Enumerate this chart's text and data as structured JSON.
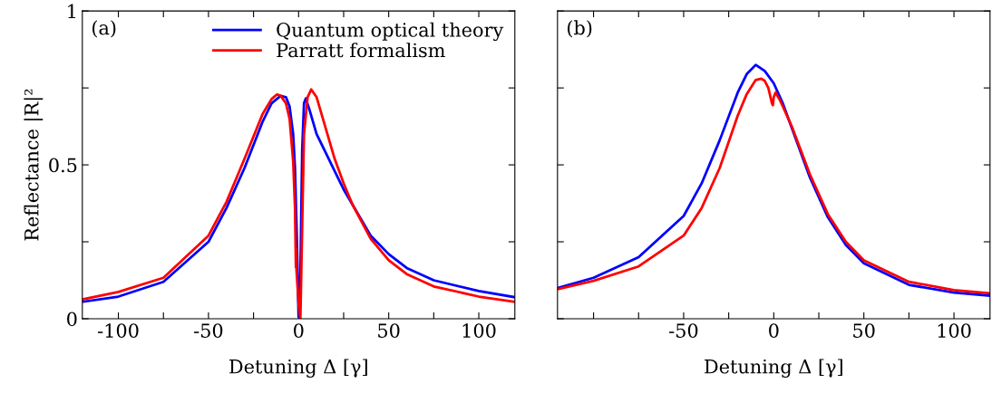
{
  "chart_data": [
    {
      "type": "line",
      "xlabel": "Detuning Δ [γ]",
      "ylabel": "Reflectance |R|²",
      "annotations": [
        "(a)"
      ],
      "legend": "top right",
      "grid": false,
      "xlim": [
        -120,
        120
      ],
      "xticks": [
        -100,
        {
          "value": -75,
          "label": null
        },
        -50,
        {
          "value": -25,
          "label": null
        },
        0,
        {
          "value": 25,
          "label": null
        },
        50,
        {
          "value": 75,
          "label": null
        },
        100
      ],
      "ylim": [
        0,
        1
      ],
      "yticks": [
        0,
        {
          "value": 0.25,
          "label": null
        },
        0.5,
        {
          "value": 0.75,
          "label": null
        },
        1
      ],
      "series": [
        {
          "name": "Quantum optical theory",
          "color": "#0000ff",
          "x": [
            -120,
            -100,
            -75,
            -50,
            -40,
            -30,
            -20,
            -15,
            -10,
            -7,
            -5,
            -3,
            -2,
            -1,
            0,
            1,
            2,
            3,
            4,
            6,
            10,
            15,
            20,
            25,
            30,
            40,
            50,
            60,
            75,
            100,
            120
          ],
          "values": [
            0.055,
            0.072,
            0.12,
            0.25,
            0.36,
            0.49,
            0.64,
            0.7,
            0.724,
            0.72,
            0.69,
            0.6,
            0.49,
            0.27,
            0.005,
            0.15,
            0.55,
            0.7,
            0.716,
            0.68,
            0.6,
            0.54,
            0.48,
            0.42,
            0.37,
            0.27,
            0.21,
            0.165,
            0.125,
            0.09,
            0.07
          ]
        },
        {
          "name": "Parratt formalism",
          "color": "#ff0000",
          "x": [
            -120,
            -100,
            -75,
            -50,
            -40,
            -30,
            -20,
            -15,
            -12,
            -10,
            -7,
            -5,
            -3,
            -2,
            -1.5,
            -1.3,
            -1.2,
            0,
            1,
            2,
            3,
            5,
            7,
            10,
            15,
            20,
            25,
            30,
            40,
            50,
            60,
            75,
            100,
            120
          ],
          "values": [
            0.063,
            0.087,
            0.133,
            0.27,
            0.38,
            0.52,
            0.665,
            0.714,
            0.729,
            0.725,
            0.7,
            0.65,
            0.51,
            0.36,
            0.167,
            0.226,
            0.16,
            0.05,
            0.0,
            0.3,
            0.6,
            0.72,
            0.745,
            0.72,
            0.62,
            0.52,
            0.44,
            0.37,
            0.26,
            0.19,
            0.145,
            0.105,
            0.072,
            0.055
          ]
        }
      ]
    },
    {
      "type": "line",
      "xlabel": "Detuning Δ [γ]",
      "annotations": [
        "(b)"
      ],
      "tick_labels": "x",
      "grid": false,
      "xlim": [
        -120,
        120
      ],
      "xticks": [
        {
          "value": -100,
          "label": null
        },
        {
          "value": -75,
          "label": null
        },
        -50,
        {
          "value": -25,
          "label": null
        },
        0,
        {
          "value": 25,
          "label": null
        },
        50,
        {
          "value": 75,
          "label": null
        },
        100
      ],
      "ylim": [
        0,
        1
      ],
      "yticks": [
        0,
        0.25,
        0.5,
        0.75,
        1
      ],
      "series": [
        {
          "color": "#0000ff",
          "x": [
            -120,
            -100,
            -75,
            -50,
            -40,
            -30,
            -20,
            -15,
            -10,
            -5,
            0,
            5,
            10,
            20,
            30,
            40,
            50,
            75,
            100,
            120
          ],
          "values": [
            0.1,
            0.133,
            0.2,
            0.334,
            0.44,
            0.58,
            0.735,
            0.795,
            0.825,
            0.805,
            0.765,
            0.7,
            0.62,
            0.46,
            0.33,
            0.24,
            0.18,
            0.11,
            0.085,
            0.075
          ]
        },
        {
          "color": "#ff0000",
          "x": [
            -120,
            -100,
            -75,
            -50,
            -40,
            -30,
            -20,
            -15,
            -10,
            -7,
            -5,
            -3,
            -1,
            -0.5,
            0,
            1,
            3,
            5,
            10,
            20,
            30,
            40,
            50,
            75,
            100,
            120
          ],
          "values": [
            0.096,
            0.123,
            0.17,
            0.27,
            0.36,
            0.49,
            0.66,
            0.73,
            0.776,
            0.78,
            0.773,
            0.75,
            0.7,
            0.694,
            0.72,
            0.735,
            0.715,
            0.69,
            0.625,
            0.47,
            0.34,
            0.25,
            0.19,
            0.12,
            0.093,
            0.083
          ]
        }
      ]
    }
  ]
}
